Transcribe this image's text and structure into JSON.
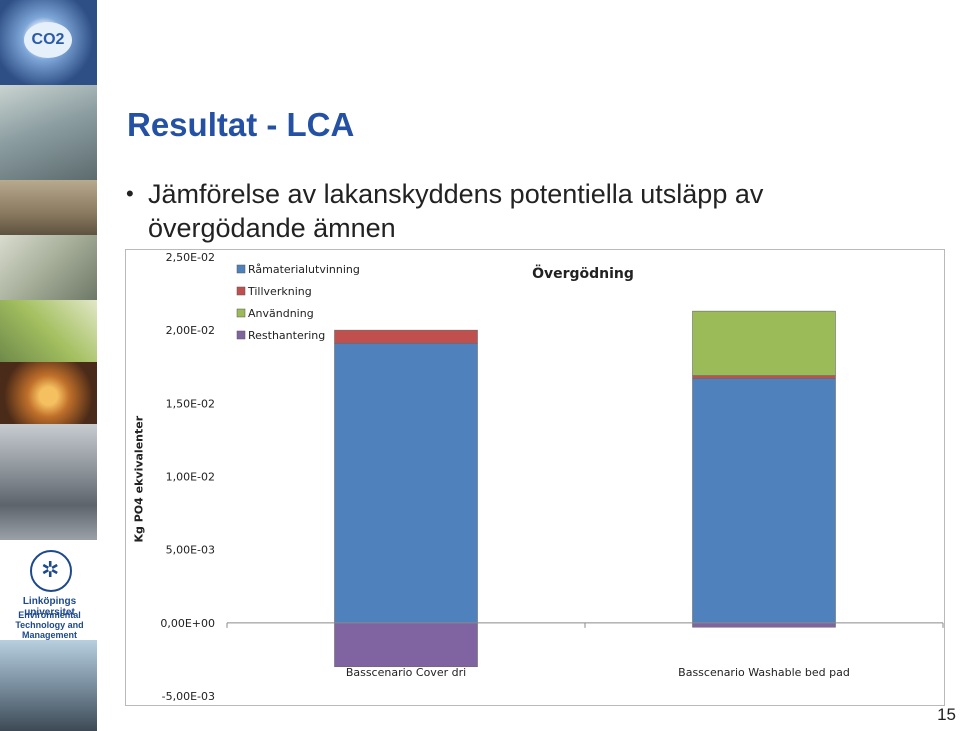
{
  "slide": {
    "title": "Resultat - LCA",
    "bullet": "Jämförelse av lakanskyddens potentiella utsläpp av övergödande ämnen",
    "page_number": "15"
  },
  "sidebar": {
    "globe_text": "CO2",
    "university": "Linköpings universitet",
    "department": "Environmental Technology and Management"
  },
  "chart_data": {
    "type": "bar",
    "stacked": true,
    "title": "Övergödning",
    "ylabel": "Kg PO4 ekvivalenter",
    "xlabel": "",
    "ylim": [
      -0.005,
      0.025
    ],
    "yticks": [
      "2,50E-02",
      "2,00E-02",
      "1,50E-02",
      "1,00E-02",
      "5,00E-03",
      "0,00E+00",
      "-5,00E-03"
    ],
    "ytick_values": [
      0.025,
      0.02,
      0.015,
      0.01,
      0.005,
      0,
      -0.005
    ],
    "categories": [
      "Basscenario Cover dri",
      "Basscenario Washable bed pad"
    ],
    "series": [
      {
        "name": "Råmaterialutvinning",
        "color": "#4f81bd",
        "values": [
          0.0191,
          0.0167
        ]
      },
      {
        "name": "Tillverkning",
        "color": "#c0504d",
        "values": [
          0.0009,
          0.0002
        ]
      },
      {
        "name": "Användning",
        "color": "#9bbb59",
        "values": [
          0,
          0.0044
        ]
      },
      {
        "name": "Resthantering",
        "color": "#8064a2",
        "values": [
          -0.003,
          -0.0003
        ]
      }
    ],
    "grid": false,
    "legend": "top-left"
  }
}
